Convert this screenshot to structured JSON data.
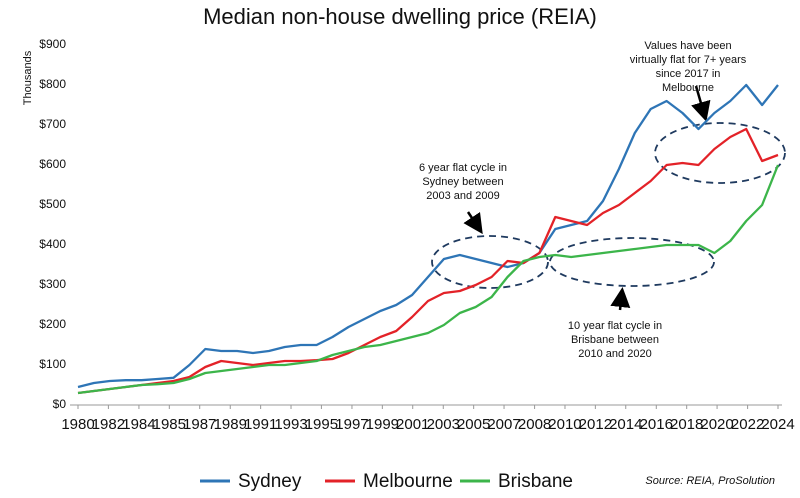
{
  "chart_data": {
    "type": "line",
    "title": "Median non-house dwelling price (REIA)",
    "y_label": "Thousands",
    "source": "Source: REIA, ProSolution",
    "x": [
      1980,
      1981,
      1982,
      1983,
      1984,
      1985,
      1986,
      1987,
      1988,
      1989,
      1990,
      1991,
      1992,
      1993,
      1994,
      1995,
      1996,
      1997,
      1998,
      1999,
      2000,
      2001,
      2002,
      2003,
      2004,
      2005,
      2006,
      2007,
      2008,
      2009,
      2010,
      2011,
      2012,
      2013,
      2014,
      2015,
      2016,
      2017,
      2018,
      2019,
      2020,
      2021,
      2022,
      2023,
      2024
    ],
    "series": [
      {
        "name": "Sydney",
        "color": "#2e75b6",
        "values": [
          45,
          55,
          60,
          62,
          62,
          65,
          68,
          100,
          140,
          135,
          135,
          130,
          135,
          145,
          150,
          150,
          170,
          195,
          215,
          235,
          250,
          275,
          320,
          365,
          375,
          365,
          355,
          345,
          355,
          380,
          440,
          450,
          460,
          510,
          590,
          680,
          740,
          760,
          730,
          690,
          730,
          760,
          800,
          750,
          800
        ]
      },
      {
        "name": "Melbourne",
        "color": "#e32228",
        "values": [
          30,
          35,
          40,
          45,
          50,
          55,
          60,
          70,
          95,
          110,
          105,
          100,
          105,
          110,
          110,
          112,
          115,
          130,
          150,
          170,
          185,
          220,
          260,
          280,
          285,
          300,
          320,
          360,
          355,
          380,
          470,
          460,
          450,
          480,
          500,
          530,
          560,
          600,
          605,
          600,
          640,
          670,
          690,
          610,
          625
        ]
      },
      {
        "name": "Brisbane",
        "color": "#3cb54a",
        "values": [
          30,
          35,
          40,
          45,
          50,
          52,
          55,
          65,
          80,
          85,
          90,
          95,
          100,
          100,
          105,
          110,
          125,
          135,
          145,
          150,
          160,
          170,
          180,
          200,
          230,
          245,
          270,
          320,
          360,
          370,
          375,
          370,
          375,
          380,
          385,
          390,
          395,
          400,
          400,
          400,
          380,
          410,
          460,
          500,
          600
        ]
      }
    ],
    "xlim": [
      1980,
      2024
    ],
    "xticks": [
      {
        "value": 1980,
        "label": "1980"
      },
      {
        "value": 1981.91,
        "label": "1982"
      },
      {
        "value": 1983.83,
        "label": "1984"
      },
      {
        "value": 1985.74,
        "label": "1985"
      },
      {
        "value": 1987.65,
        "label": "1987"
      },
      {
        "value": 1989.57,
        "label": "1989"
      },
      {
        "value": 1991.48,
        "label": "1991"
      },
      {
        "value": 1993.39,
        "label": "1993"
      },
      {
        "value": 1995.3,
        "label": "1995"
      },
      {
        "value": 1997.22,
        "label": "1997"
      },
      {
        "value": 1999.13,
        "label": "1999"
      },
      {
        "value": 2001.04,
        "label": "2001"
      },
      {
        "value": 2002.96,
        "label": "2003"
      },
      {
        "value": 2004.87,
        "label": "2005"
      },
      {
        "value": 2006.78,
        "label": "2007"
      },
      {
        "value": 2008.7,
        "label": "2008"
      },
      {
        "value": 2010.61,
        "label": "2010"
      },
      {
        "value": 2012.52,
        "label": "2012"
      },
      {
        "value": 2014.43,
        "label": "2014"
      },
      {
        "value": 2016.35,
        "label": "2016"
      },
      {
        "value": 2018.26,
        "label": "2018"
      },
      {
        "value": 2020.17,
        "label": "2020"
      },
      {
        "value": 2022.09,
        "label": "2022"
      },
      {
        "value": 2024,
        "label": "2024"
      }
    ],
    "ylim": [
      0,
      900
    ],
    "yticks": [
      {
        "value": 0,
        "label": "$0"
      },
      {
        "value": 100,
        "label": "$100"
      },
      {
        "value": 200,
        "label": "$200"
      },
      {
        "value": 300,
        "label": "$300"
      },
      {
        "value": 400,
        "label": "$400"
      },
      {
        "value": 500,
        "label": "$500"
      },
      {
        "value": 600,
        "label": "$600"
      },
      {
        "value": 700,
        "label": "$700"
      },
      {
        "value": 800,
        "label": "$800"
      },
      {
        "value": 900,
        "label": "$900"
      }
    ],
    "annotations": [
      {
        "lines": [
          "6 year flat cycle in",
          "Sydney between",
          "2003 and 2009"
        ]
      },
      {
        "lines": [
          "10 year flat cycle in",
          "Brisbane between",
          "2010 and 2020"
        ]
      },
      {
        "lines": [
          "Values have been",
          "virtually flat for 7+ years",
          "since 2017 in",
          "Melbourne"
        ]
      }
    ]
  }
}
